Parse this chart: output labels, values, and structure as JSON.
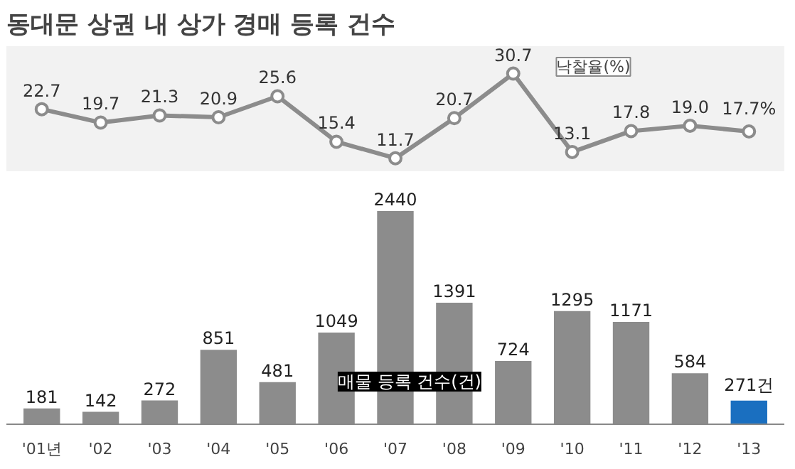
{
  "chart_data": [
    {
      "type": "line",
      "title": "동대문 상권 내 상가 경매 등록 건수",
      "categories": [
        null,
        null,
        null,
        null,
        null,
        null,
        null,
        null,
        null,
        null,
        null,
        null,
        null
      ],
      "tick_labels": false,
      "grid": false,
      "marker": "circle",
      "line_style": "solid",
      "series": [
        {
          "name": "낙찰율(%)",
          "color": "#8c8c8c",
          "values": [
            22.7,
            19.7,
            21.3,
            20.9,
            25.6,
            15.4,
            11.7,
            20.7,
            30.7,
            13.1,
            17.8,
            19.0,
            17.7
          ],
          "value_labels": [
            "22.7",
            "19.7",
            "21.3",
            "20.9",
            "25.6",
            "15.4",
            "11.7",
            "20.7",
            "30.7",
            "13.1",
            "17.8",
            "19.0",
            "17.7%"
          ]
        }
      ]
    },
    {
      "type": "bar",
      "categories": [
        "'01년",
        "'02",
        "'03",
        "'04",
        "'05",
        "'06",
        "'07",
        "'08",
        "'09",
        "'10",
        "'11",
        "'12",
        "'13"
      ],
      "tick_labels": "x",
      "grid": false,
      "series": [
        {
          "name": "매물 등록 건수(건)",
          "colors": [
            "#8c8c8c",
            "#8c8c8c",
            "#8c8c8c",
            "#8c8c8c",
            "#8c8c8c",
            "#8c8c8c",
            "#8c8c8c",
            "#8c8c8c",
            "#8c8c8c",
            "#8c8c8c",
            "#8c8c8c",
            "#8c8c8c",
            "#1a6fc0"
          ],
          "values": [
            181,
            142,
            272,
            851,
            481,
            1049,
            2440,
            1391,
            724,
            1295,
            1171,
            584,
            271
          ],
          "value_labels": [
            "181",
            "142",
            "272",
            "851",
            "481",
            "1049",
            "2440",
            "1391",
            "724",
            "1295",
            "1171",
            "584",
            "271건"
          ]
        }
      ]
    }
  ]
}
